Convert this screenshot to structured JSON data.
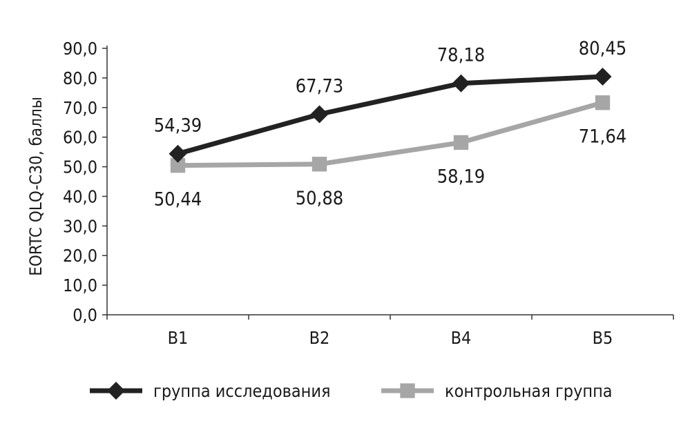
{
  "chart_data": {
    "type": "line",
    "title": "",
    "ylabel": "EORTC QLQ-C30, баллы",
    "xlabel": "",
    "categories": [
      "B1",
      "B2",
      "B4",
      "B5"
    ],
    "ylim": [
      0,
      90
    ],
    "ytick_step": 10,
    "ytick_labels": [
      "0,0",
      "10,0",
      "20,0",
      "30,0",
      "40,0",
      "50,0",
      "60,0",
      "70,0",
      "80,0",
      "90,0"
    ],
    "legend_position": "bottom",
    "grid": false,
    "series": [
      {
        "name": "группа исследования",
        "color": "#222222",
        "marker": "diamond",
        "values": [
          54.39,
          67.73,
          78.18,
          80.45
        ],
        "labels": [
          "54,39",
          "67,73",
          "78,18",
          "80,45"
        ],
        "label_position": "above"
      },
      {
        "name": "контрольная группа",
        "color": "#a6a6a6",
        "marker": "square",
        "values": [
          50.44,
          50.88,
          58.19,
          71.64
        ],
        "labels": [
          "50,44",
          "50,88",
          "58,19",
          "71,64"
        ],
        "label_position": "below"
      }
    ]
  }
}
